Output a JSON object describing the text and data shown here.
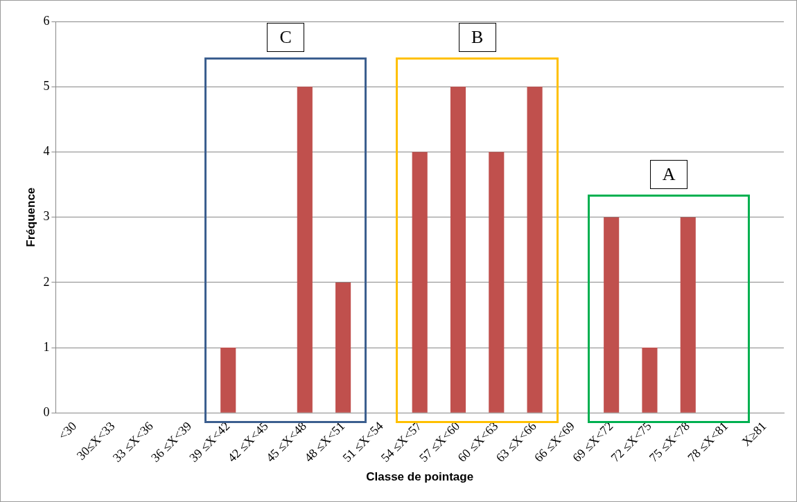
{
  "chart_data": {
    "type": "bar",
    "xlabel": "Classe de pointage",
    "ylabel": "Fréquence",
    "categories": [
      "<30",
      "30≤X<33",
      "33 ≤X<36",
      "36 ≤X<39",
      "39 ≤X<42",
      "42 ≤X<45",
      "45 ≤X<48",
      "48 ≤X<51",
      "51 ≤X<54",
      "54 ≤X<57",
      "57 ≤X<60",
      "60 ≤X<63",
      "63 ≤X<66",
      "66 ≤X<69",
      "69 ≤X<72",
      "72 ≤X<75",
      "75 ≤X<78",
      "78 ≤X<81",
      "X≥81"
    ],
    "values": [
      0,
      0,
      0,
      0,
      1,
      0,
      5,
      2,
      0,
      4,
      5,
      4,
      5,
      0,
      3,
      1,
      3,
      0,
      0
    ],
    "color": "#c0504d",
    "ylim": [
      0,
      6
    ],
    "yticks": [
      0,
      1,
      2,
      3,
      4,
      5,
      6
    ],
    "grid": "y",
    "legend": false,
    "annotations": [
      "C",
      "B",
      "A"
    ]
  }
}
